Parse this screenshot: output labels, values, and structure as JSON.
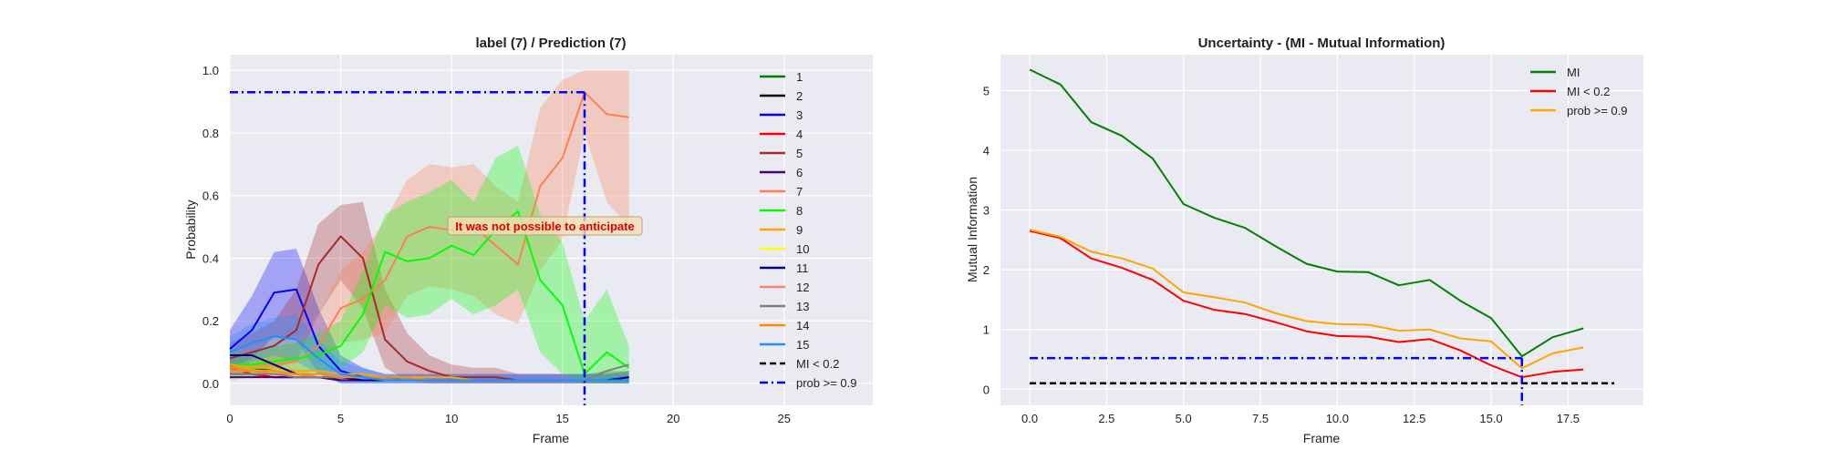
{
  "chart_data": [
    {
      "type": "line",
      "title": "label (7) / Prediction (7)",
      "xlabel": "Frame",
      "ylabel": "Probability",
      "xlim": [
        0,
        29
      ],
      "ylim": [
        -0.07,
        1.05
      ],
      "xticks": [
        0,
        5,
        10,
        15,
        20,
        25
      ],
      "yticks": [
        0.0,
        0.2,
        0.4,
        0.6,
        0.8,
        1.0
      ],
      "grid": true,
      "legend_position": "right",
      "annotation": "It was not possible to anticipate",
      "annotation_at": [
        12.2,
        0.51
      ],
      "x": [
        0,
        1,
        2,
        3,
        4,
        5,
        6,
        7,
        8,
        9,
        10,
        11,
        12,
        13,
        14,
        15,
        16,
        17,
        18
      ],
      "series": [
        {
          "name": "1",
          "color": "#008000",
          "values": [
            0.06,
            0.05,
            0.04,
            0.03,
            0.02,
            0.01,
            0.01,
            0.01,
            0.01,
            0.01,
            0.01,
            0.01,
            0.01,
            0.01,
            0.01,
            0.01,
            0.01,
            0.01,
            0.01
          ]
        },
        {
          "name": "2",
          "color": "#000000",
          "values": [
            0.03,
            0.03,
            0.02,
            0.02,
            0.02,
            0.01,
            0.01,
            0.01,
            0.01,
            0.01,
            0.01,
            0.01,
            0.01,
            0.01,
            0.01,
            0.01,
            0.01,
            0.01,
            0.01
          ]
        },
        {
          "name": "3",
          "color": "#0000ff",
          "values": [
            0.11,
            0.17,
            0.29,
            0.3,
            0.12,
            0.04,
            0.02,
            0.01,
            0.01,
            0.01,
            0.01,
            0.01,
            0.01,
            0.01,
            0.01,
            0.01,
            0.01,
            0.01,
            0.02
          ],
          "lower": [
            0.05,
            0.08,
            0.15,
            0.14,
            0.03,
            0.0,
            0.0,
            0.0,
            0.0,
            0.0,
            0.0,
            0.0,
            0.0,
            0.0,
            0.0,
            0.0,
            0.0,
            0.0,
            0.0
          ],
          "upper": [
            0.17,
            0.28,
            0.42,
            0.43,
            0.24,
            0.09,
            0.05,
            0.03,
            0.03,
            0.03,
            0.03,
            0.03,
            0.03,
            0.03,
            0.03,
            0.03,
            0.03,
            0.03,
            0.04
          ]
        },
        {
          "name": "4",
          "color": "#ff0000",
          "values": [
            0.05,
            0.03,
            0.02,
            0.02,
            0.02,
            0.02,
            0.02,
            0.02,
            0.01,
            0.01,
            0.01,
            0.01,
            0.01,
            0.01,
            0.01,
            0.01,
            0.01,
            0.01,
            0.01
          ]
        },
        {
          "name": "5",
          "color": "#a52a2a",
          "values": [
            0.08,
            0.1,
            0.12,
            0.17,
            0.38,
            0.47,
            0.4,
            0.14,
            0.07,
            0.04,
            0.02,
            0.02,
            0.02,
            0.01,
            0.01,
            0.01,
            0.01,
            0.01,
            0.01
          ],
          "lower": [
            0.03,
            0.04,
            0.05,
            0.07,
            0.22,
            0.33,
            0.24,
            0.05,
            0.01,
            0.0,
            0.0,
            0.0,
            0.0,
            0.0,
            0.0,
            0.0,
            0.0,
            0.0,
            0.0
          ],
          "upper": [
            0.13,
            0.16,
            0.2,
            0.3,
            0.51,
            0.57,
            0.58,
            0.3,
            0.16,
            0.09,
            0.06,
            0.05,
            0.05,
            0.03,
            0.03,
            0.03,
            0.03,
            0.04,
            0.04
          ]
        },
        {
          "name": "6",
          "color": "#4b0082",
          "values": [
            0.02,
            0.02,
            0.02,
            0.02,
            0.02,
            0.01,
            0.01,
            0.01,
            0.01,
            0.01,
            0.01,
            0.01,
            0.01,
            0.01,
            0.01,
            0.01,
            0.01,
            0.01,
            0.01
          ]
        },
        {
          "name": "7",
          "color": "#ff7f50",
          "values": [
            0.05,
            0.06,
            0.06,
            0.07,
            0.12,
            0.24,
            0.27,
            0.33,
            0.47,
            0.5,
            0.49,
            0.5,
            0.44,
            0.38,
            0.63,
            0.72,
            0.93,
            0.86,
            0.85
          ],
          "lower": [
            0.01,
            0.02,
            0.02,
            0.02,
            0.05,
            0.13,
            0.14,
            0.16,
            0.28,
            0.31,
            0.3,
            0.28,
            0.22,
            0.19,
            0.36,
            0.46,
            0.8,
            0.58,
            0.5
          ],
          "upper": [
            0.1,
            0.11,
            0.11,
            0.13,
            0.22,
            0.36,
            0.42,
            0.52,
            0.65,
            0.7,
            0.69,
            0.7,
            0.63,
            0.58,
            0.88,
            0.97,
            1.0,
            1.0,
            1.0
          ]
        },
        {
          "name": "8",
          "color": "#00ff00",
          "values": [
            0.06,
            0.06,
            0.07,
            0.08,
            0.09,
            0.12,
            0.22,
            0.42,
            0.39,
            0.4,
            0.44,
            0.41,
            0.49,
            0.55,
            0.33,
            0.25,
            0.03,
            0.1,
            0.05
          ],
          "lower": [
            0.02,
            0.02,
            0.03,
            0.03,
            0.03,
            0.05,
            0.1,
            0.25,
            0.21,
            0.22,
            0.27,
            0.22,
            0.25,
            0.3,
            0.1,
            0.03,
            0.0,
            0.0,
            0.0
          ],
          "upper": [
            0.1,
            0.1,
            0.12,
            0.13,
            0.16,
            0.2,
            0.36,
            0.54,
            0.58,
            0.61,
            0.65,
            0.58,
            0.72,
            0.76,
            0.54,
            0.45,
            0.2,
            0.3,
            0.12
          ]
        },
        {
          "name": "9",
          "color": "#ffa500",
          "values": [
            0.06,
            0.05,
            0.05,
            0.04,
            0.04,
            0.03,
            0.03,
            0.02,
            0.02,
            0.02,
            0.02,
            0.01,
            0.01,
            0.01,
            0.01,
            0.01,
            0.01,
            0.01,
            0.01
          ]
        },
        {
          "name": "10",
          "color": "#ffff00",
          "values": [
            0.04,
            0.04,
            0.04,
            0.03,
            0.03,
            0.02,
            0.02,
            0.02,
            0.01,
            0.01,
            0.01,
            0.01,
            0.01,
            0.01,
            0.01,
            0.01,
            0.01,
            0.01,
            0.01
          ]
        },
        {
          "name": "11",
          "color": "#00008b",
          "values": [
            0.09,
            0.09,
            0.06,
            0.03,
            0.02,
            0.02,
            0.01,
            0.01,
            0.01,
            0.01,
            0.01,
            0.01,
            0.01,
            0.01,
            0.01,
            0.01,
            0.01,
            0.01,
            0.02
          ]
        },
        {
          "name": "12",
          "color": "#fa8072",
          "values": [
            0.04,
            0.04,
            0.03,
            0.03,
            0.02,
            0.02,
            0.02,
            0.01,
            0.01,
            0.01,
            0.01,
            0.01,
            0.01,
            0.01,
            0.01,
            0.01,
            0.01,
            0.01,
            0.01
          ]
        },
        {
          "name": "13",
          "color": "#808080",
          "values": [
            0.03,
            0.03,
            0.03,
            0.02,
            0.02,
            0.02,
            0.02,
            0.02,
            0.01,
            0.01,
            0.01,
            0.01,
            0.01,
            0.01,
            0.01,
            0.01,
            0.01,
            0.04,
            0.06
          ]
        },
        {
          "name": "14",
          "color": "#ff8c00",
          "values": [
            0.05,
            0.04,
            0.04,
            0.03,
            0.03,
            0.02,
            0.02,
            0.02,
            0.02,
            0.01,
            0.01,
            0.01,
            0.01,
            0.01,
            0.01,
            0.01,
            0.01,
            0.01,
            0.01
          ]
        },
        {
          "name": "15",
          "color": "#1e90ff",
          "values": [
            0.1,
            0.13,
            0.15,
            0.14,
            0.08,
            0.03,
            0.02,
            0.01,
            0.01,
            0.01,
            0.01,
            0.01,
            0.01,
            0.01,
            0.01,
            0.01,
            0.01,
            0.01,
            0.01
          ],
          "lower": [
            0.05,
            0.07,
            0.09,
            0.07,
            0.03,
            0.0,
            0.0,
            0.0,
            0.0,
            0.0,
            0.0,
            0.0,
            0.0,
            0.0,
            0.0,
            0.0,
            0.0,
            0.0,
            0.0
          ],
          "upper": [
            0.15,
            0.19,
            0.21,
            0.22,
            0.14,
            0.07,
            0.05,
            0.03,
            0.03,
            0.03,
            0.03,
            0.03,
            0.03,
            0.03,
            0.03,
            0.03,
            0.03,
            0.03,
            0.03
          ]
        }
      ],
      "reference_lines": [
        {
          "name": "MI < 0.2",
          "color": "#000000",
          "style": "dashed"
        },
        {
          "name": "prob >= 0.9",
          "color": "#0000ff",
          "style": "dashdot",
          "hline_y": 0.93,
          "x_from": 0,
          "x_to": 16,
          "vline_x": 16
        }
      ]
    },
    {
      "type": "line",
      "title": "Uncertainty - (MI - Mutual Information)",
      "xlabel": "Frame",
      "ylabel": "Mutual Information",
      "xlim": [
        -0.95,
        19.95
      ],
      "ylim": [
        -0.27,
        5.6
      ],
      "xticks": [
        0.0,
        2.5,
        5.0,
        7.5,
        10.0,
        12.5,
        15.0,
        17.5
      ],
      "yticks": [
        0,
        1,
        2,
        3,
        4,
        5
      ],
      "grid": true,
      "legend_position": "top-right",
      "x": [
        0,
        1,
        2,
        3,
        4,
        5,
        6,
        7,
        8,
        9,
        10,
        11,
        12,
        13,
        14,
        15,
        16,
        17,
        18
      ],
      "series": [
        {
          "name": "MI",
          "color": "#008000",
          "values": [
            5.35,
            5.1,
            4.47,
            4.24,
            3.86,
            3.1,
            2.87,
            2.7,
            2.39,
            2.1,
            1.97,
            1.96,
            1.74,
            1.83,
            1.48,
            1.19,
            0.55,
            0.87,
            1.02
          ]
        },
        {
          "name": "MI < 0.2",
          "color": "#ff0000",
          "values": [
            2.65,
            2.53,
            2.19,
            2.03,
            1.83,
            1.48,
            1.33,
            1.26,
            1.12,
            0.97,
            0.89,
            0.88,
            0.79,
            0.84,
            0.65,
            0.4,
            0.2,
            0.29,
            0.33
          ]
        },
        {
          "name": "prob >= 0.9",
          "color": "#ffa500",
          "values": [
            2.67,
            2.55,
            2.3,
            2.19,
            2.02,
            1.62,
            1.54,
            1.45,
            1.27,
            1.14,
            1.09,
            1.08,
            0.98,
            1.0,
            0.85,
            0.8,
            0.35,
            0.6,
            0.7
          ]
        }
      ],
      "reference_lines": [
        {
          "color": "#000000",
          "style": "dashed",
          "hline_y": 0.1,
          "x_from": 0,
          "x_to": 19
        },
        {
          "color": "#0000ff",
          "style": "dashdot",
          "hline_y": 0.52,
          "x_from": 0,
          "x_to": 16,
          "vline_x": 16
        }
      ]
    }
  ]
}
